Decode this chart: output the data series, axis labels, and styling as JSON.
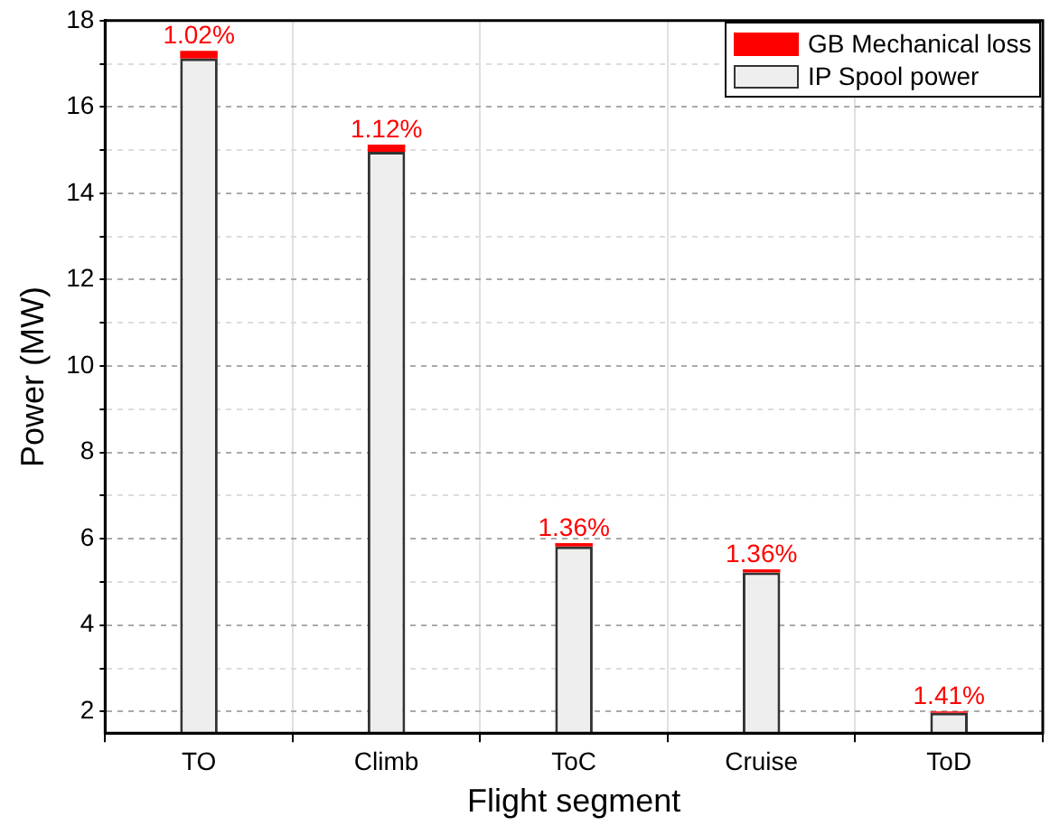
{
  "chart_data": {
    "type": "bar",
    "xlabel": "Flight segment",
    "ylabel": "Power (MW)",
    "categories": [
      "TO",
      "Climb",
      "ToC",
      "Cruise",
      "ToD"
    ],
    "series": [
      {
        "name": "IP Spool power",
        "color": "#eeeeee",
        "values": [
          17.12,
          14.96,
          5.82,
          5.22,
          1.97
        ]
      },
      {
        "name": "GB Mechanical loss",
        "color": "#ff0000",
        "values": [
          0.18,
          0.17,
          0.08,
          0.07,
          0.03
        ],
        "base": [
          17.12,
          14.96,
          5.82,
          5.22,
          1.97
        ]
      }
    ],
    "ylim": [
      1.5,
      18
    ],
    "yticks": [
      2,
      {
        "value": 3,
        "label": null
      },
      4,
      {
        "value": 5,
        "label": null
      },
      6,
      {
        "value": 7,
        "label": null
      },
      8,
      {
        "value": 9,
        "label": null
      },
      10,
      {
        "value": 11,
        "label": null
      },
      12,
      {
        "value": 13,
        "label": null
      },
      14,
      {
        "value": 15,
        "label": null
      },
      16,
      {
        "value": 17,
        "label": null
      },
      18
    ],
    "grid": true,
    "legend": "top right",
    "annotations": [
      {
        "text": "1.02%",
        "x": "TO",
        "y": 17.3
      },
      {
        "text": "1.12%",
        "x": "Climb",
        "y": 15.13
      },
      {
        "text": "1.36%",
        "x": "ToC",
        "y": 5.9
      },
      {
        "text": "1.36%",
        "x": "Cruise",
        "y": 5.29
      },
      {
        "text": "1.41%",
        "x": "ToD",
        "y": 2.0
      }
    ]
  }
}
